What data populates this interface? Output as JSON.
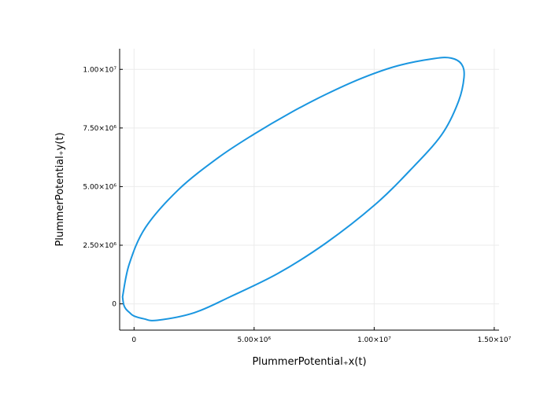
{
  "colors": {
    "series": "#1a96e0",
    "grid": "#ebebeb",
    "axis": "#000000",
    "background": "#ffffff"
  },
  "chart_data": {
    "type": "line",
    "title": "",
    "xlabel": "PlummerPotential₊x(t)",
    "ylabel": "PlummerPotential₊y(t)",
    "xlim": [
      -600000.0,
      15200000.0
    ],
    "ylim": [
      -1120000.0,
      10880000.0
    ],
    "grid": true,
    "legend": "none",
    "x_ticks": [
      {
        "value": 0,
        "label": "0"
      },
      {
        "value": 5000000.0,
        "label": "5.00×10⁶"
      },
      {
        "value": 10000000.0,
        "label": "1.00×10⁷"
      },
      {
        "value": 15000000.0,
        "label": "1.50×10⁷"
      }
    ],
    "y_ticks": [
      {
        "value": 0,
        "label": "0"
      },
      {
        "value": 2500000.0,
        "label": "2.50×10⁶"
      },
      {
        "value": 5000000.0,
        "label": "5.00×10⁶"
      },
      {
        "value": 7500000.0,
        "label": "7.50×10⁶"
      },
      {
        "value": 10000000.0,
        "label": "1.00×10⁷"
      }
    ],
    "series": [
      {
        "x": [
          -480000,
          -200000,
          480000,
          1850000,
          3500000,
          5000000,
          6500000,
          8000000,
          9500000,
          11000000,
          12500000,
          13200000,
          13640000,
          13740000,
          13500000,
          12800000,
          11500000,
          10000000,
          8000000,
          6000000,
          4000000,
          2500000,
          960000,
          420000,
          0,
          -180000,
          -340000,
          -430000,
          -480000
        ],
        "y": [
          300000,
          1700000,
          3260000,
          4870000,
          6230000,
          7240000,
          8140000,
          8940000,
          9630000,
          10160000,
          10460000,
          10480000,
          10220000,
          9660000,
          8600000,
          7200000,
          5700000,
          4200000,
          2600000,
          1300000,
          300000,
          -380000,
          -700000,
          -640000,
          -520000,
          -380000,
          -220000,
          -40000,
          300000
        ]
      }
    ]
  }
}
